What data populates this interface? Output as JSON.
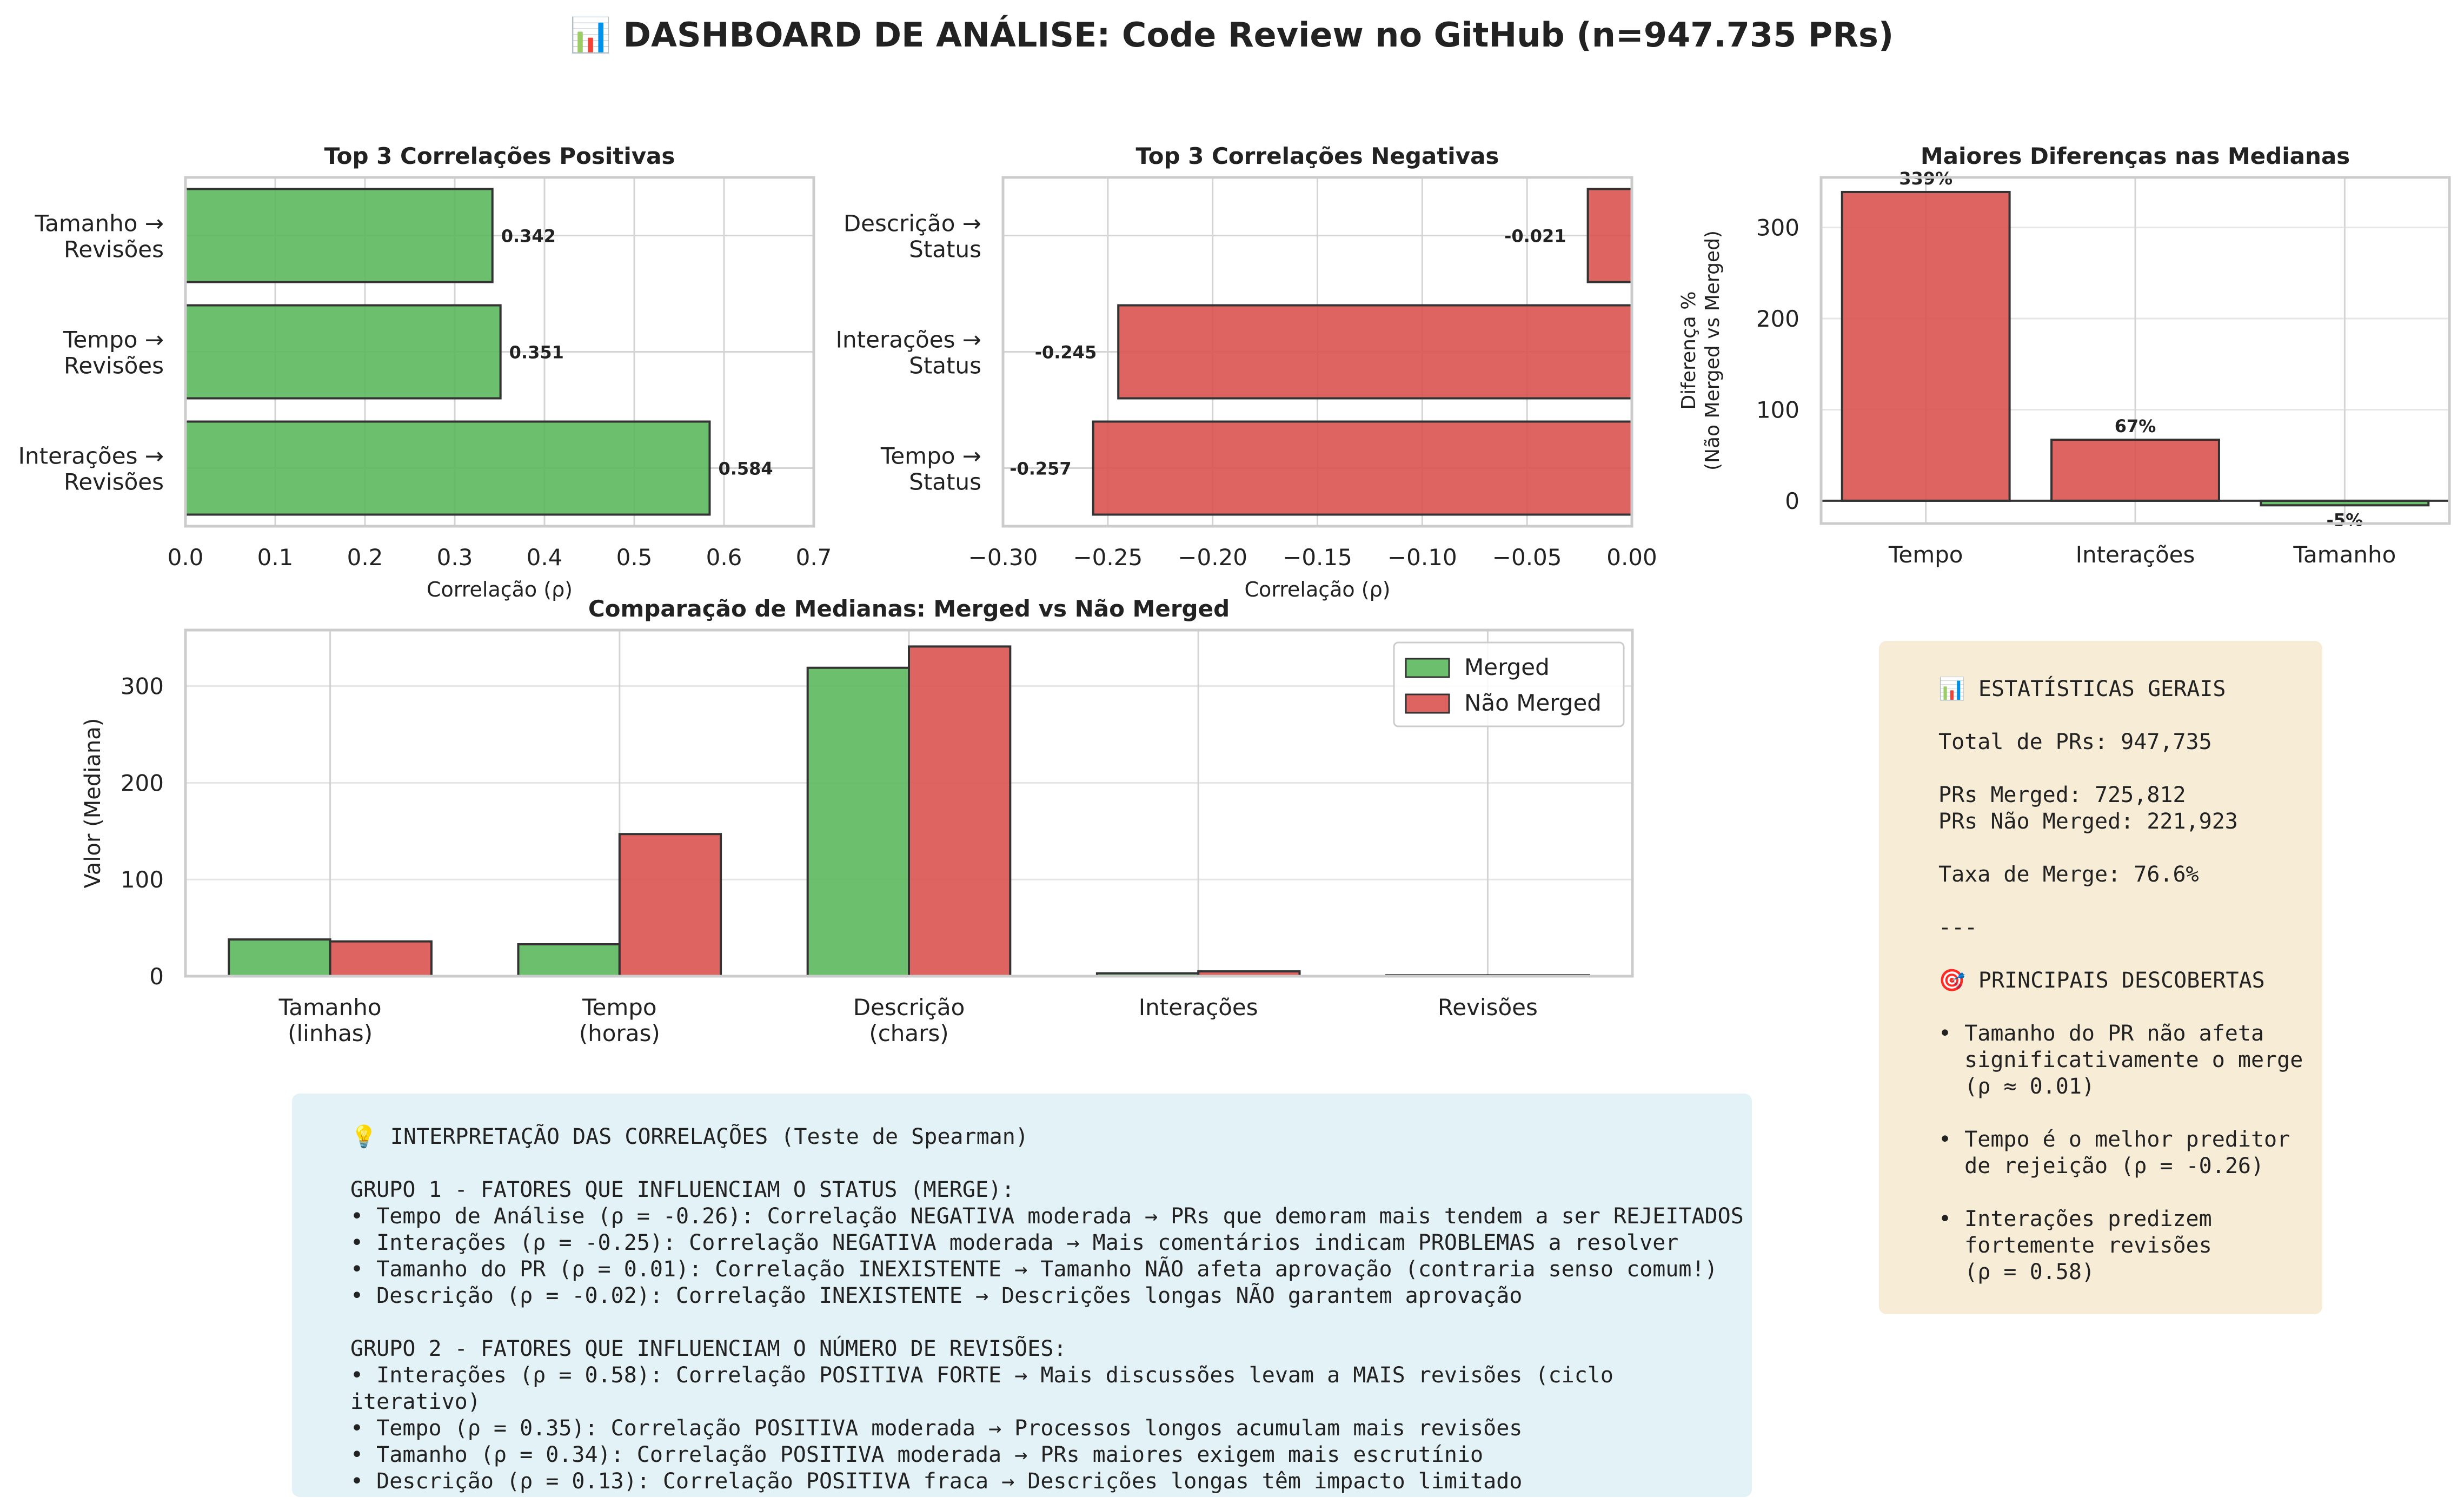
{
  "title": "📊 DASHBOARD DE ANÁLISE: Code Review no GitHub (n=947.735 PRs)",
  "chart_data": [
    {
      "id": "pos",
      "type": "bar",
      "orientation": "horizontal",
      "title": "Top 3 Correlações Positivas",
      "xlabel": "Correlação (ρ)",
      "categories": [
        [
          "Tamanho →",
          "Revisões"
        ],
        [
          "Tempo →",
          "Revisões"
        ],
        [
          "Interações →",
          "Revisões"
        ]
      ],
      "values": [
        0.342,
        0.351,
        0.584
      ],
      "value_labels": [
        "0.342",
        "0.351",
        "0.584"
      ],
      "xlim": [
        0,
        0.7
      ],
      "xticks": [
        0,
        0.1,
        0.2,
        0.3,
        0.4,
        0.5,
        0.6,
        0.7
      ],
      "xtick_labels": [
        "0.0",
        "0.1",
        "0.2",
        "0.3",
        "0.4",
        "0.5",
        "0.6",
        "0.7"
      ],
      "color": "#5cb85c",
      "grid": true
    },
    {
      "id": "neg",
      "type": "bar",
      "orientation": "horizontal",
      "title": "Top 3 Correlações Negativas",
      "xlabel": "Correlação (ρ)",
      "categories": [
        [
          "Descrição →",
          "Status"
        ],
        [
          "Interações →",
          "Status"
        ],
        [
          "Tempo →",
          "Status"
        ]
      ],
      "values": [
        -0.021,
        -0.245,
        -0.257
      ],
      "value_labels": [
        "-0.021",
        "-0.245",
        "-0.257"
      ],
      "xlim": [
        -0.3,
        0
      ],
      "xticks": [
        -0.3,
        -0.25,
        -0.2,
        -0.15,
        -0.1,
        -0.05,
        0
      ],
      "xtick_labels": [
        "−0.30",
        "−0.25",
        "−0.20",
        "−0.15",
        "−0.10",
        "−0.05",
        "0.00"
      ],
      "color": "#d9534f",
      "grid": true
    },
    {
      "id": "diff",
      "type": "bar",
      "title": "Maiores Diferenças nas Medianas",
      "ylabel": [
        "Diferença %",
        "(Não Merged vs Merged)"
      ],
      "categories": [
        "Tempo",
        "Interações",
        "Tamanho"
      ],
      "values": [
        339,
        67,
        -5
      ],
      "value_labels": [
        "339%",
        "67%",
        "-5%"
      ],
      "ylim": [
        -25,
        355
      ],
      "yticks": [
        0,
        100,
        200,
        300
      ],
      "ytick_labels": [
        "0",
        "100",
        "200",
        "300"
      ],
      "colors": [
        "#d9534f",
        "#d9534f",
        "#5cb85c"
      ],
      "grid": true
    },
    {
      "id": "med",
      "type": "bar",
      "title": "Comparação de Medianas: Merged vs Não Merged",
      "ylabel": "Valor (Mediana)",
      "categories": [
        [
          "Tamanho",
          "(linhas)"
        ],
        [
          "Tempo",
          "(horas)"
        ],
        [
          "Descrição",
          "(chars)"
        ],
        [
          "Interações"
        ],
        [
          "Revisões"
        ]
      ],
      "series": [
        {
          "name": "Merged",
          "values": [
            38,
            33,
            319,
            3,
            1
          ],
          "color": "#5cb85c"
        },
        {
          "name": "Não Merged",
          "values": [
            36,
            147,
            341,
            5,
            1
          ],
          "color": "#d9534f"
        }
      ],
      "ylim": [
        0,
        358
      ],
      "yticks": [
        0,
        100,
        200,
        300
      ],
      "ytick_labels": [
        "0",
        "100",
        "200",
        "300"
      ],
      "legend": "top-right",
      "grid": true
    }
  ],
  "interpretation": {
    "lines": [
      "💡 INTERPRETAÇÃO DAS CORRELAÇÕES (Teste de Spearman)",
      "",
      "GRUPO 1 - FATORES QUE INFLUENCIAM O STATUS (MERGE):",
      "• Tempo de Análise (ρ = -0.26): Correlação NEGATIVA moderada → PRs que demoram mais tendem a ser REJEITADOS",
      "• Interações (ρ = -0.25): Correlação NEGATIVA moderada → Mais comentários indicam PROBLEMAS a resolver",
      "• Tamanho do PR (ρ = 0.01): Correlação INEXISTENTE → Tamanho NÃO afeta aprovação (contraria senso comum!)",
      "• Descrição (ρ = -0.02): Correlação INEXISTENTE → Descrições longas NÃO garantem aprovação",
      "",
      "GRUPO 2 - FATORES QUE INFLUENCIAM O NÚMERO DE REVISÕES:",
      "• Interações (ρ = 0.58): Correlação POSITIVA FORTE → Mais discussões levam a MAIS revisões (ciclo iterativo)",
      "• Tempo (ρ = 0.35): Correlação POSITIVA moderada → Processos longos acumulam mais revisões",
      "• Tamanho (ρ = 0.34): Correlação POSITIVA moderada → PRs maiores exigem mais escrutínio",
      "• Descrição (ρ = 0.13): Correlação POSITIVA fraca → Descrições longas têm impacto limitado"
    ]
  },
  "stats": {
    "lines": [
      "📊 ESTATÍSTICAS GERAIS",
      "",
      "Total de PRs: 947,735",
      "",
      "PRs Merged: 725,812",
      "PRs Não Merged: 221,923",
      "",
      "Taxa de Merge: 76.6%",
      "",
      "---",
      "",
      "🎯 PRINCIPAIS DESCOBERTAS",
      "",
      "• Tamanho do PR não afeta",
      "  significativamente o merge",
      "  (ρ ≈ 0.01)",
      "",
      "• Tempo é o melhor preditor",
      "  de rejeição (ρ = -0.26)",
      "",
      "• Interações predizem",
      "  fortemente revisões",
      "  (ρ = 0.58)"
    ]
  }
}
